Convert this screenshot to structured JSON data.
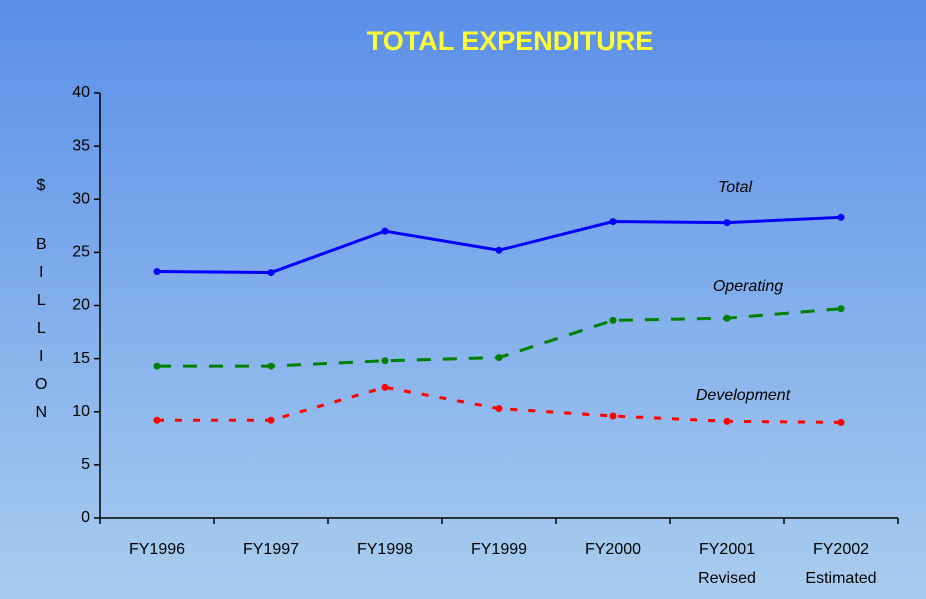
{
  "chart_data": {
    "type": "line",
    "title": "TOTAL EXPENDITURE",
    "y_label_unit": "$",
    "y_label": "BILLION",
    "categories": [
      [
        "FY1996"
      ],
      [
        "FY1997"
      ],
      [
        "FY1998"
      ],
      [
        "FY1999"
      ],
      [
        "FY2000"
      ],
      [
        "FY2001",
        "Revised"
      ],
      [
        "FY2002",
        "Estimated"
      ]
    ],
    "series": [
      {
        "name": "Total",
        "color": "#0000ff",
        "dash": "solid",
        "values": [
          23.2,
          23.1,
          27.0,
          25.2,
          27.9,
          27.8,
          28.3
        ]
      },
      {
        "name": "Operating",
        "color": "#008000",
        "dash": "dashed",
        "values": [
          14.3,
          14.3,
          14.8,
          15.1,
          18.6,
          18.8,
          19.7
        ]
      },
      {
        "name": "Development",
        "color": "#ff0000",
        "dash": "dotted",
        "values": [
          9.2,
          9.2,
          12.3,
          10.3,
          9.6,
          9.1,
          9.0
        ]
      }
    ],
    "ylim": [
      0,
      40
    ],
    "yticks": [
      0,
      5,
      10,
      15,
      20,
      25,
      30,
      35,
      40
    ],
    "grid": false
  }
}
